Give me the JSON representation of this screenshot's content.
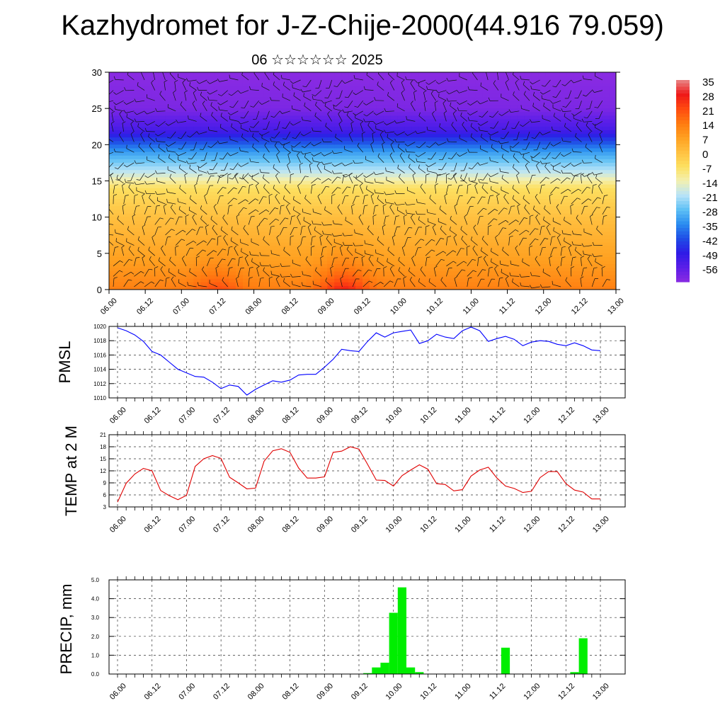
{
  "title": "Kazhydromet for J-Z-Chije-2000(44.916 79.059)",
  "subtitle": "06 ☆☆☆☆☆☆ 2025",
  "time_labels": [
    "06.00",
    "06.12",
    "07.00",
    "07.12",
    "08.00",
    "08.12",
    "09.00",
    "09.12",
    "10.00",
    "10.12",
    "11.00",
    "11.12",
    "12.00",
    "12.12",
    "13.00"
  ],
  "colors": {
    "pmsl_line": "#0000ff",
    "temp_line": "#e00000",
    "precip_bar": "#00ee00",
    "colorbar": [
      "#8a2be2",
      "#5a1ee8",
      "#2e1be6",
      "#1f4de6",
      "#2a8df0",
      "#5ec0f5",
      "#b8e4f8",
      "#f3f0b0",
      "#fde060",
      "#ffc040",
      "#ffa020",
      "#ff7a10",
      "#ff4a10",
      "#ee1818",
      "#e88888"
    ]
  },
  "colorbar_labels": [
    "35",
    "28",
    "21",
    "14",
    "7",
    "0",
    "-7",
    "-14",
    "-21",
    "-28",
    "-35",
    "-42",
    "-49",
    "-56"
  ],
  "chart_data": [
    {
      "type": "heatmap",
      "title": "",
      "xlabel": "",
      "ylabel": "",
      "ylim": [
        0,
        30
      ],
      "y_ticks": [
        0,
        5,
        10,
        15,
        20,
        25,
        30
      ],
      "x_ticks": [
        "06.00",
        "06.12",
        "07.00",
        "07.12",
        "08.00",
        "08.12",
        "09.00",
        "09.12",
        "10.00",
        "10.12",
        "11.00",
        "11.12",
        "12.00",
        "12.12",
        "13.00"
      ],
      "colorbar_range": [
        -60,
        38
      ],
      "field_profile": [
        {
          "level": 0,
          "value": 16
        },
        {
          "level": 4,
          "value": 10
        },
        {
          "level": 10,
          "value": 3
        },
        {
          "level": 14,
          "value": -4
        },
        {
          "level": 16,
          "value": -16
        },
        {
          "level": 19,
          "value": -30
        },
        {
          "level": 22,
          "value": -50
        },
        {
          "level": 25,
          "value": -58
        },
        {
          "level": 30,
          "value": -60
        }
      ],
      "warm_maxima": [
        {
          "time": "07.12",
          "value": 24
        },
        {
          "time": "09.06",
          "value": 30
        }
      ],
      "overlay": "wind barbs"
    },
    {
      "type": "line",
      "ylabel": "PMSL",
      "ylim": [
        1010,
        1020
      ],
      "y_ticks": [
        1010,
        1012,
        1014,
        1016,
        1018,
        1020
      ],
      "series": [
        {
          "values": [
            1019.8,
            1019.4,
            1018.8,
            1017.9,
            1016.5,
            1016.0,
            1015.0,
            1014.0,
            1013.5,
            1013.0,
            1012.9,
            1012.2,
            1011.3,
            1011.8,
            1011.6,
            1010.4,
            1011.2,
            1011.8,
            1012.4,
            1012.2,
            1012.5,
            1013.2,
            1013.3,
            1013.3,
            1014.3,
            1015.4,
            1016.8,
            1016.6,
            1016.5,
            1017.9,
            1019.1,
            1018.5,
            1019.1,
            1019.3,
            1019.5,
            1017.6,
            1018.0,
            1018.9,
            1018.5,
            1018.3,
            1019.4,
            1019.9,
            1019.4,
            1017.9,
            1018.3,
            1018.6,
            1018.2,
            1017.3,
            1017.8,
            1018.0,
            1017.9,
            1017.5,
            1017.3,
            1017.7,
            1017.3,
            1016.7,
            1016.6
          ]
        }
      ]
    },
    {
      "type": "line",
      "ylabel": "TEMP at 2 M",
      "ylim": [
        3,
        21
      ],
      "y_ticks": [
        3,
        6,
        9,
        12,
        15,
        18,
        21
      ],
      "series": [
        {
          "values": [
            4.2,
            8.9,
            11.2,
            12.6,
            12.0,
            7.1,
            5.8,
            4.8,
            5.9,
            13.1,
            15.0,
            15.8,
            15.1,
            10.4,
            9.0,
            7.5,
            7.7,
            14.4,
            17.0,
            17.5,
            16.6,
            12.7,
            10.2,
            10.2,
            10.5,
            16.6,
            16.9,
            18.0,
            17.4,
            13.6,
            9.7,
            9.6,
            8.2,
            10.8,
            12.2,
            13.5,
            12.4,
            8.8,
            8.6,
            7.0,
            7.3,
            10.7,
            12.2,
            12.9,
            10.2,
            8.2,
            7.6,
            6.6,
            6.9,
            10.3,
            11.8,
            11.8,
            8.8,
            7.2,
            6.7,
            5.0,
            5.0
          ]
        }
      ]
    },
    {
      "type": "bar",
      "ylabel": "PRECIP, mm",
      "ylim": [
        0,
        5
      ],
      "y_ticks": [
        "0.0",
        "1.0",
        "2.0",
        "3.0",
        "4.0",
        "5.0"
      ],
      "values": [
        0,
        0,
        0,
        0,
        0,
        0,
        0,
        0,
        0,
        0,
        0,
        0,
        0,
        0,
        0,
        0,
        0,
        0,
        0,
        0,
        0,
        0,
        0,
        0,
        0,
        0,
        0,
        0,
        0,
        0.05,
        0.35,
        0.6,
        3.25,
        4.6,
        0.35,
        0.1,
        0,
        0,
        0,
        0,
        0,
        0,
        0,
        0,
        0,
        1.4,
        0,
        0,
        0,
        0,
        0,
        0,
        0,
        0.1,
        1.9,
        0,
        0
      ]
    }
  ]
}
